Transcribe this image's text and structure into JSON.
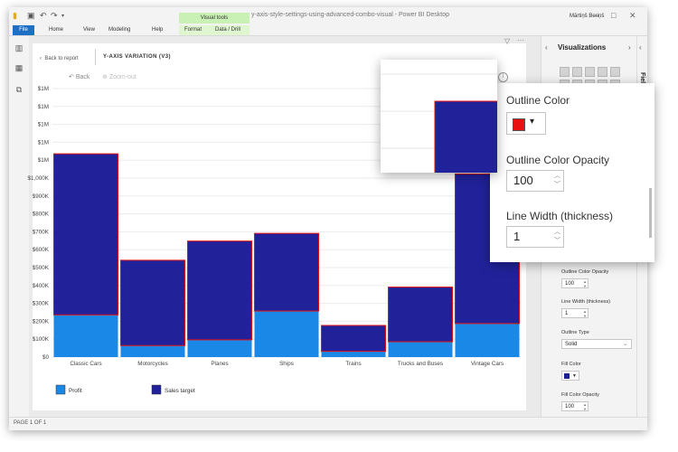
{
  "app": {
    "title": "y-axis-style-settings-using-advanced-combo-visual - Power BI Desktop",
    "user": "Mārtiņš Beriņš",
    "context_header": "Visual tools"
  },
  "ribbon": {
    "tabs": [
      "File",
      "Home",
      "View",
      "Modeling",
      "Help",
      "Format",
      "Data / Drill"
    ]
  },
  "report": {
    "back_to_report": "Back to report",
    "visual_title": "Y-AXIS VARIATION (V3)",
    "back": "Back",
    "zoom_out": "Zoom-out",
    "status": "PAGE 1 OF 1"
  },
  "chart_data": {
    "type": "bar",
    "stacked": true,
    "categories": [
      "Classic Cars",
      "Motorcycles",
      "Planes",
      "Ships",
      "Trains",
      "Trucks and Buses",
      "Vintage Cars"
    ],
    "series": [
      {
        "name": "Profit",
        "color": "#1a88e6",
        "values": [
          220000,
          60000,
          90000,
          240000,
          30000,
          80000,
          175000
        ]
      },
      {
        "name": "Sales target",
        "color": "#21229a",
        "values": [
          840000,
          445000,
          515000,
          405000,
          135000,
          285000,
          780000
        ]
      }
    ],
    "outline_color": "#e81010",
    "y_tick_labels": [
      "$0",
      "$100K",
      "$200K",
      "$300K",
      "$400K",
      "$500K",
      "$600K",
      "$700K",
      "$800K",
      "$900K",
      "$1,000K",
      "$1M",
      "$1M",
      "$1M",
      "$1M",
      "$1M"
    ],
    "ylim": [
      0,
      1400000
    ],
    "grid": true,
    "legend_position": "bottom-left"
  },
  "visualizations": {
    "title": "Visualizations",
    "fields_tab": "Fields",
    "outline_opacity_label": "Outline Color Opacity",
    "outline_opacity_value": "100",
    "line_width_label": "Line Width (thickness)",
    "line_width_value": "1",
    "outline_type_label": "Outline Type",
    "outline_type_value": "Solid",
    "fill_color_label": "Fill Color",
    "fill_opacity_label": "Fill Color Opacity",
    "fill_opacity_value": "100",
    "fill_color": "#1f1f8f"
  },
  "zoom_panel": {
    "outline_color_label": "Outline Color",
    "outline_color": "#e81010",
    "outline_opacity_label": "Outline Color Opacity",
    "outline_opacity_value": "100",
    "line_width_label": "Line Width (thickness)",
    "line_width_value": "1"
  }
}
